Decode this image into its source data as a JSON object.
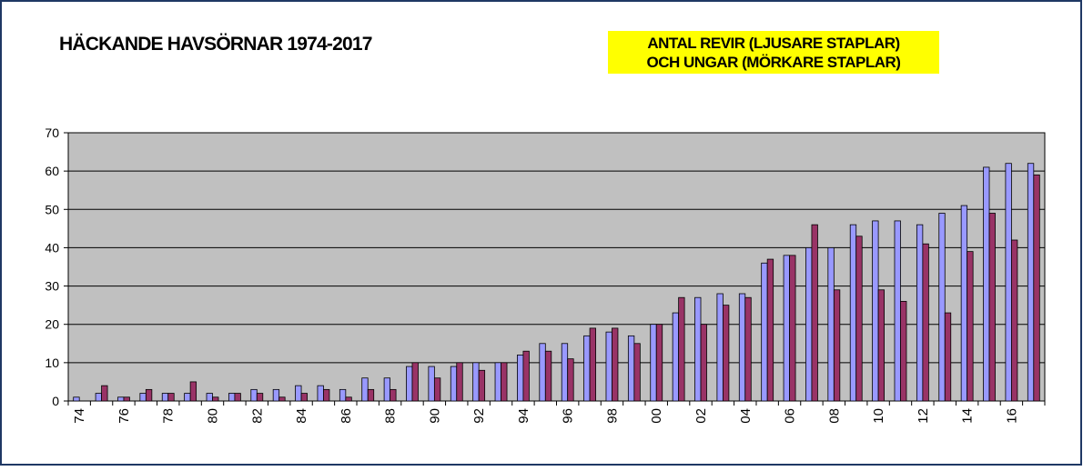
{
  "chart_data": {
    "type": "bar",
    "title": "HÄCKANDE HAVSÖRNAR 1974-2017",
    "annotation": [
      "ANTAL REVIR (LJUSARE STAPLAR)",
      "OCH UNGAR (MÖRKARE STAPLAR)"
    ],
    "categories": [
      "74",
      null,
      "76",
      null,
      "78",
      null,
      "80",
      null,
      "82",
      null,
      "84",
      null,
      "86",
      null,
      "88",
      null,
      "90",
      null,
      "92",
      null,
      "94",
      null,
      "96",
      null,
      "98",
      null,
      "00",
      null,
      "02",
      null,
      "04",
      null,
      "06",
      null,
      "08",
      null,
      "10",
      null,
      "12",
      null,
      "14",
      null,
      "16",
      null
    ],
    "series": [
      {
        "color": "#9999ff",
        "values": [
          1,
          2,
          1,
          2,
          2,
          2,
          2,
          2,
          3,
          3,
          4,
          4,
          3,
          6,
          6,
          9,
          9,
          9,
          10,
          10,
          12,
          15,
          15,
          17,
          18,
          17,
          20,
          23,
          27,
          28,
          28,
          36,
          38,
          40,
          40,
          46,
          47,
          47,
          46,
          49,
          51,
          61,
          62,
          62
        ]
      },
      {
        "color": "#993366",
        "values": [
          0,
          4,
          1,
          3,
          2,
          5,
          1,
          2,
          2,
          1,
          2,
          3,
          1,
          3,
          3,
          10,
          6,
          10,
          8,
          10,
          13,
          13,
          11,
          19,
          19,
          15,
          20,
          27,
          20,
          25,
          27,
          37,
          38,
          46,
          29,
          43,
          29,
          26,
          41,
          23,
          39,
          49,
          42,
          59
        ]
      }
    ],
    "ylim": [
      0,
      70
    ],
    "yticks": [
      0,
      10,
      20,
      30,
      40,
      50,
      60,
      70
    ],
    "grid": true,
    "plot_background": "#c0c0c0"
  }
}
